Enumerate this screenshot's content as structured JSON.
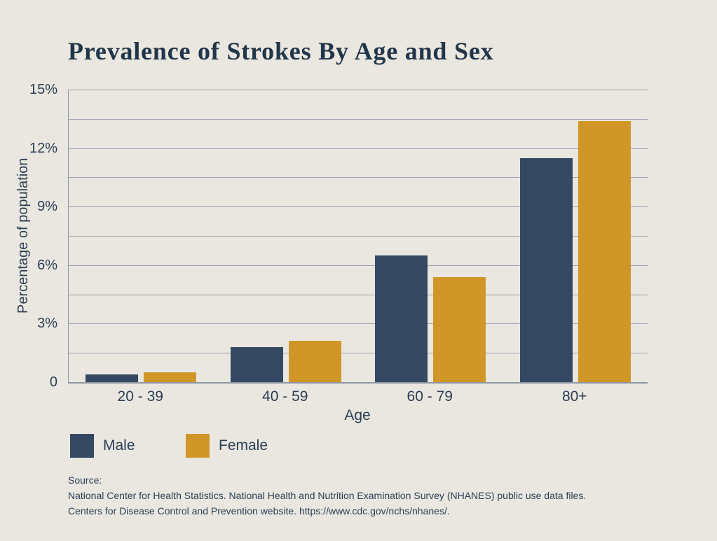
{
  "page": {
    "background_color": "#e9e7e0",
    "text_color": "#2c3e53",
    "title_color": "#22364a",
    "gridline_color": "#9aa2ae",
    "axis_color": "#8e96a4"
  },
  "chart_data": {
    "type": "bar",
    "title": "Prevalence of Strokes By Age and Sex",
    "xlabel": "Age",
    "ylabel": "Percentage of population",
    "categories": [
      "20 - 39",
      "40 - 59",
      "60 - 79",
      "80+"
    ],
    "series": [
      {
        "name": "Male",
        "color": "#344961",
        "values": [
          0.4,
          1.8,
          6.5,
          11.5
        ]
      },
      {
        "name": "Female",
        "color": "#d19628",
        "values": [
          0.5,
          2.1,
          5.4,
          13.4
        ]
      }
    ],
    "ylim": [
      0,
      15
    ],
    "ytick_step": 3,
    "ytick_labels": [
      "0",
      "3%",
      "6%",
      "9%",
      "12%",
      "15%"
    ],
    "grid_step": 1.5,
    "grid": "horizontal",
    "legend_position": "bottom-left"
  },
  "source": {
    "label": "Source:",
    "line1": "National Center for Health Statistics. National Health and Nutrition Examination Survey (NHANES) public use data files.",
    "line2": "Centers for Disease Control and Prevention website. https://www.cdc.gov/nchs/nhanes/."
  }
}
